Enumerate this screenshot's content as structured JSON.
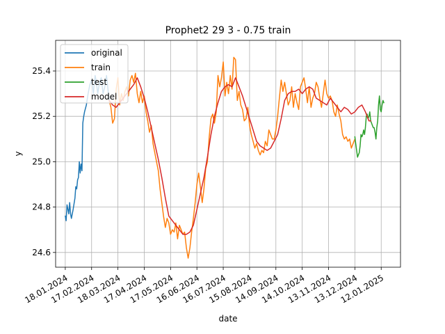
{
  "chart_data": {
    "type": "line",
    "title": "Prophet2 29 3 - 0.75 train",
    "xlabel": "date",
    "ylabel": "y",
    "grid": true,
    "legend_position": "top-left",
    "x_unit": "days since 18.01.2024",
    "xlim": [
      -11,
      382
    ],
    "ylim": [
      24.535,
      25.535
    ],
    "x_ticks": [
      {
        "day": 0,
        "label": "18.01.2024"
      },
      {
        "day": 30,
        "label": "17.02.2024"
      },
      {
        "day": 60,
        "label": "18.03.2024"
      },
      {
        "day": 90,
        "label": "17.04.2024"
      },
      {
        "day": 120,
        "label": "17.05.2024"
      },
      {
        "day": 150,
        "label": "16.06.2024"
      },
      {
        "day": 180,
        "label": "16.07.2024"
      },
      {
        "day": 210,
        "label": "15.08.2024"
      },
      {
        "day": 240,
        "label": "14.09.2024"
      },
      {
        "day": 270,
        "label": "14.10.2024"
      },
      {
        "day": 300,
        "label": "13.11.2024"
      },
      {
        "day": 330,
        "label": "13.12.2024"
      },
      {
        "day": 360,
        "label": "12.01.2025"
      }
    ],
    "y_ticks": [
      {
        "value": 24.6,
        "label": "24.6"
      },
      {
        "value": 24.8,
        "label": "24.8"
      },
      {
        "value": 25.0,
        "label": "25.0"
      },
      {
        "value": 25.2,
        "label": "25.2"
      },
      {
        "value": 25.4,
        "label": "25.4"
      }
    ],
    "series": [
      {
        "name": "original",
        "color": "#1f77b4",
        "x": [
          0,
          1,
          2,
          3,
          4,
          5,
          6,
          7,
          9,
          11,
          12,
          13,
          14,
          15,
          16,
          17,
          18,
          19,
          20,
          21,
          22,
          24,
          26,
          28,
          30,
          32,
          33,
          34,
          35,
          37,
          39,
          41,
          43,
          45,
          47,
          50
        ],
        "y": [
          24.76,
          24.74,
          24.81,
          24.79,
          24.77,
          24.82,
          24.77,
          24.75,
          24.79,
          24.84,
          24.89,
          24.88,
          24.92,
          24.93,
          25.0,
          24.95,
          24.99,
          24.96,
          25.17,
          25.2,
          25.22,
          25.25,
          25.3,
          25.34,
          25.36,
          25.3,
          25.34,
          25.38,
          25.36,
          25.3,
          25.35,
          25.37,
          25.3,
          25.33,
          25.38,
          25.27
        ]
      },
      {
        "name": "train",
        "color": "#ff7f0e",
        "x": [
          50,
          52,
          54,
          56,
          58,
          60,
          62,
          64,
          66,
          68,
          70,
          72,
          74,
          76,
          78,
          80,
          82,
          84,
          86,
          88,
          90,
          92,
          94,
          96,
          98,
          100,
          102,
          104,
          106,
          108,
          110,
          112,
          114,
          116,
          118,
          120,
          122,
          124,
          126,
          128,
          130,
          132,
          134,
          136,
          138,
          140,
          142,
          144,
          146,
          148,
          150,
          152,
          154,
          156,
          158,
          160,
          162,
          164,
          166,
          168,
          170,
          172,
          174,
          176,
          178,
          180,
          182,
          184,
          186,
          188,
          190,
          192,
          194,
          196,
          198,
          200,
          202,
          204,
          206,
          208,
          210,
          212,
          214,
          216,
          218,
          220,
          222,
          224,
          226,
          228,
          230,
          232,
          234,
          236,
          238,
          240,
          242,
          244,
          246,
          248,
          250,
          252,
          254,
          256,
          258,
          260,
          262,
          264,
          266,
          268,
          270,
          272,
          274,
          276,
          278,
          280,
          282,
          284,
          286,
          288,
          290,
          292,
          294,
          296,
          298,
          300,
          302,
          304,
          306,
          308,
          310,
          312,
          314,
          316,
          318,
          320,
          322,
          324,
          326,
          328,
          330
        ],
        "y": [
          25.27,
          25.24,
          25.17,
          25.19,
          25.32,
          25.37,
          25.25,
          25.3,
          25.27,
          25.31,
          25.33,
          25.29,
          25.36,
          25.38,
          25.35,
          25.39,
          25.3,
          25.26,
          25.31,
          25.26,
          25.29,
          25.22,
          25.18,
          25.13,
          25.16,
          25.08,
          25.04,
          25.0,
          24.96,
          24.88,
          24.82,
          24.76,
          24.71,
          24.75,
          24.73,
          24.68,
          24.7,
          24.69,
          24.73,
          24.66,
          24.72,
          24.7,
          24.68,
          24.69,
          24.62,
          24.575,
          24.62,
          24.69,
          24.75,
          24.82,
          24.9,
          24.95,
          24.89,
          24.82,
          24.88,
          24.97,
          25.0,
          25.11,
          25.19,
          25.21,
          25.17,
          25.22,
          25.38,
          25.33,
          25.37,
          25.44,
          25.29,
          25.35,
          25.3,
          25.38,
          25.32,
          25.46,
          25.45,
          25.27,
          25.31,
          25.25,
          25.23,
          25.18,
          25.19,
          25.24,
          25.16,
          25.12,
          25.09,
          25.06,
          25.08,
          25.05,
          25.03,
          25.05,
          25.04,
          25.09,
          25.07,
          25.14,
          25.12,
          25.1,
          25.1,
          25.14,
          25.2,
          25.28,
          25.36,
          25.31,
          25.35,
          25.3,
          25.25,
          25.27,
          25.33,
          25.24,
          25.3,
          25.26,
          25.23,
          25.33,
          25.35,
          25.37,
          25.32,
          25.26,
          25.33,
          25.24,
          25.28,
          25.3,
          25.35,
          25.33,
          25.28,
          25.24,
          25.3,
          25.36,
          25.3,
          25.28,
          25.29,
          25.27,
          25.22,
          25.2,
          25.25,
          25.21,
          25.18,
          25.12,
          25.1,
          25.11,
          25.09,
          25.1,
          25.06,
          25.08,
          25.1
        ]
      },
      {
        "name": "test",
        "color": "#2ca02c",
        "x": [
          330,
          331,
          332,
          333,
          334,
          335,
          336,
          337,
          338,
          339,
          340,
          341,
          342,
          343,
          344,
          345,
          346,
          347,
          348,
          349,
          350,
          351,
          352,
          353,
          354,
          355,
          356,
          357,
          358,
          359,
          360,
          361,
          362,
          363
        ],
        "y": [
          25.11,
          25.08,
          25.05,
          25.02,
          25.03,
          25.04,
          25.07,
          25.12,
          25.11,
          25.12,
          25.14,
          25.12,
          25.15,
          25.2,
          25.21,
          25.19,
          25.2,
          25.22,
          25.18,
          25.17,
          25.16,
          25.15,
          25.15,
          25.13,
          25.1,
          25.15,
          25.18,
          25.25,
          25.29,
          25.23,
          25.22,
          25.25,
          25.27,
          25.26
        ]
      },
      {
        "name": "model",
        "color": "#d62728",
        "x": [
          50,
          54,
          58,
          62,
          66,
          70,
          74,
          78,
          82,
          86,
          90,
          94,
          98,
          102,
          106,
          110,
          114,
          118,
          122,
          126,
          130,
          134,
          138,
          142,
          146,
          150,
          154,
          158,
          162,
          166,
          170,
          174,
          178,
          182,
          186,
          190,
          194,
          198,
          202,
          206,
          210,
          214,
          218,
          222,
          226,
          230,
          234,
          238,
          242,
          246,
          250,
          254,
          258,
          262,
          266,
          270,
          274,
          278,
          282,
          286,
          290,
          294,
          298,
          302,
          306,
          310,
          314,
          318,
          322,
          326,
          330,
          334,
          338,
          342,
          346,
          348
        ],
        "y": [
          25.27,
          25.25,
          25.24,
          25.26,
          25.28,
          25.3,
          25.32,
          25.34,
          25.37,
          25.33,
          25.28,
          25.22,
          25.15,
          25.08,
          25.01,
          24.93,
          24.84,
          24.76,
          24.74,
          24.72,
          24.7,
          24.68,
          24.68,
          24.69,
          24.72,
          24.79,
          24.86,
          24.93,
          25.02,
          25.12,
          25.2,
          25.26,
          25.31,
          25.33,
          25.34,
          25.33,
          25.37,
          25.33,
          25.29,
          25.24,
          25.19,
          25.14,
          25.09,
          25.07,
          25.06,
          25.05,
          25.06,
          25.09,
          25.12,
          25.19,
          25.27,
          25.3,
          25.31,
          25.31,
          25.32,
          25.3,
          25.32,
          25.33,
          25.32,
          25.28,
          25.27,
          25.26,
          25.25,
          25.28,
          25.26,
          25.24,
          25.22,
          25.24,
          25.23,
          25.21,
          25.22,
          25.24,
          25.25,
          25.22,
          25.18,
          25.18
        ]
      }
    ]
  }
}
